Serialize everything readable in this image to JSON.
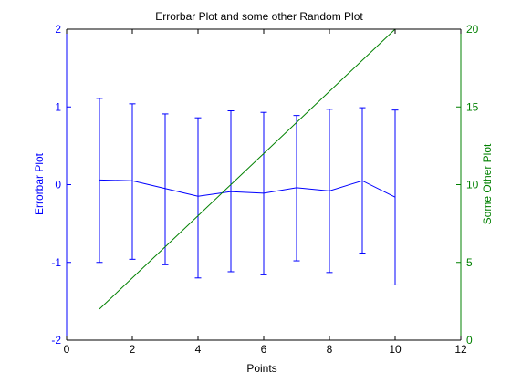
{
  "chart_data": {
    "type": "line",
    "title": "Errorbar Plot and some other Random Plot",
    "xlabel": "Points",
    "ylabel_left": "Errorbar Plot",
    "ylabel_right": "Some Other Plot",
    "xlim": [
      0,
      12
    ],
    "ylim_left": [
      -2,
      2
    ],
    "ylim_right": [
      0,
      20
    ],
    "xticks": [
      0,
      2,
      4,
      6,
      8,
      10,
      12
    ],
    "yticks_left": [
      -2,
      -1,
      0,
      1,
      2
    ],
    "yticks_right": [
      0,
      5,
      10,
      15,
      20
    ],
    "grid": false,
    "colors": {
      "left": "#0000ff",
      "right": "#008000",
      "axes": "#000000"
    },
    "series": [
      {
        "axis": "left",
        "style": "errorbar",
        "color": "#0000ff",
        "x": [
          1,
          2,
          3,
          4,
          5,
          6,
          7,
          8,
          9,
          10
        ],
        "y": [
          0.06,
          0.05,
          -0.05,
          -0.15,
          -0.09,
          -0.11,
          -0.04,
          -0.08,
          0.05,
          -0.16
        ],
        "lower": [
          -1.0,
          -0.96,
          -1.03,
          -1.2,
          -1.12,
          -1.16,
          -0.98,
          -1.13,
          -0.88,
          -1.29
        ],
        "upper": [
          1.11,
          1.04,
          0.91,
          0.86,
          0.95,
          0.93,
          0.89,
          0.97,
          0.99,
          0.96
        ]
      },
      {
        "axis": "right",
        "style": "line",
        "color": "#008000",
        "x": [
          1,
          10
        ],
        "y": [
          2,
          20
        ]
      }
    ]
  }
}
